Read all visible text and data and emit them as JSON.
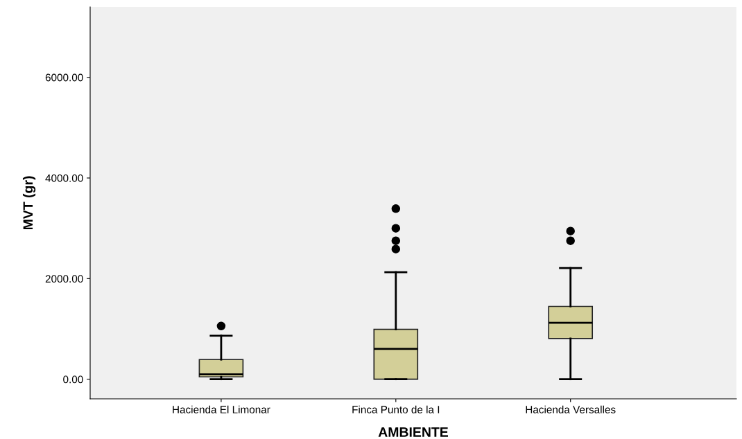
{
  "chart_data": {
    "type": "box",
    "xlabel": "AMBIENTE",
    "ylabel": "MVT (gr)",
    "categories": [
      "Hacienda El Limonar",
      "Finca Punto de la I",
      "Hacienda Versalles"
    ],
    "color": "#d3cf98",
    "boxes": [
      {
        "low": 0,
        "q1": 47,
        "median": 97,
        "q3": 391,
        "high": 864,
        "outliers": [
          1057
        ]
      },
      {
        "low": 0,
        "q1": 0,
        "median": 602,
        "q3": 992,
        "high": 2128,
        "outliers": [
          2587,
          2753,
          3000,
          3390
        ]
      },
      {
        "low": 0,
        "q1": 809,
        "median": 1122,
        "q3": 1447,
        "high": 2210,
        "outliers": [
          2753,
          2945
        ]
      }
    ],
    "ylim": [
      -390,
      7400
    ],
    "yticks": [
      {
        "value": 0,
        "label": "0.00"
      },
      {
        "value": 2000,
        "label": "2000.00"
      },
      {
        "value": 4000,
        "label": "4000.00"
      },
      {
        "value": 6000,
        "label": "6000.00"
      }
    ],
    "grid": false,
    "legend": false
  }
}
